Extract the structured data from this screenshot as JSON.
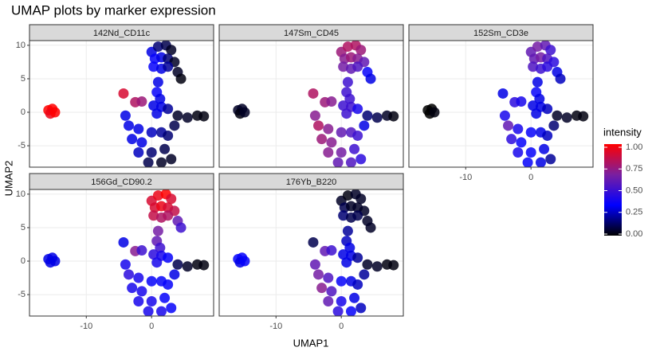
{
  "chart_data": {
    "type": "scatter",
    "title": "UMAP plots by marker expression",
    "x_label": "UMAP1",
    "y_label": "UMAP2",
    "xlim": [
      -18.7,
      9.5
    ],
    "ylim": [
      -8.2,
      10.7
    ],
    "xticks": [
      -10,
      0
    ],
    "yticks": [
      -5,
      0,
      5,
      10
    ],
    "grid": true,
    "x": [
      -15.8,
      -15.2,
      -15.5,
      -14.8,
      -4.3,
      -2.5,
      -1.5,
      0,
      1,
      2.2,
      3,
      0.5,
      1.5,
      2.5,
      3.5,
      0.3,
      1.5,
      2.5,
      4,
      4.5,
      1,
      0.8,
      1.3,
      0.3,
      1.5,
      2.5,
      0.8,
      4,
      5.5,
      7,
      8,
      3.5,
      -3.5,
      -2,
      -3,
      -1.5,
      0,
      1.5,
      2.5,
      -2,
      0,
      2,
      -0.5,
      1.5,
      3,
      -4
    ],
    "y": [
      0.3,
      0.5,
      -0.2,
      0,
      2.8,
      1.5,
      1.6,
      9,
      9.8,
      10,
      9.3,
      8,
      8.2,
      8,
      7.5,
      6.8,
      6.5,
      6.8,
      6,
      5,
      4.5,
      3,
      2,
      1,
      0.8,
      0.5,
      -0.2,
      -0.5,
      -0.8,
      -0.5,
      -0.6,
      -2,
      -2,
      -2.5,
      -4,
      -4.5,
      -3,
      -3,
      -3.5,
      -6,
      -6,
      -5.5,
      -7.5,
      -7.5,
      -7,
      -0.5
    ],
    "legend_title": "intensity",
    "colors": [
      "#000000",
      "#0000ff",
      "#7a1fa0",
      "#ff0000"
    ],
    "clim": [
      0,
      1
    ],
    "cticks": [
      {
        "value": 0,
        "label": "0.00"
      },
      {
        "value": 0.25,
        "label": "0.25"
      },
      {
        "value": 0.5,
        "label": "0.50"
      },
      {
        "value": 0.75,
        "label": "0.75"
      },
      {
        "value": 1,
        "label": "1.00"
      }
    ],
    "facets": [
      {
        "name": "142Nd_CD11c",
        "values": [
          1,
          1,
          0.95,
          1,
          0.9,
          0.8,
          0.75,
          0.3,
          0.15,
          0.1,
          0.05,
          0.35,
          0.3,
          0.15,
          0.05,
          0.35,
          0.3,
          0.2,
          0.05,
          0.02,
          0.3,
          0.35,
          0.3,
          0.3,
          0.3,
          0.2,
          0.3,
          0.05,
          0.05,
          0.02,
          0.02,
          0.1,
          0.3,
          0.3,
          0.3,
          0.3,
          0.25,
          0.2,
          0.15,
          0.25,
          0.15,
          0.1,
          0.1,
          0.05,
          0.05,
          0.3
        ]
      },
      {
        "name": "147Sm_CD45",
        "values": [
          0.05,
          0.05,
          0.02,
          0.05,
          0.8,
          0.75,
          0.7,
          0.75,
          0.8,
          0.8,
          0.75,
          0.7,
          0.75,
          0.7,
          0.6,
          0.65,
          0.6,
          0.55,
          0.35,
          0.3,
          0.5,
          0.5,
          0.5,
          0.5,
          0.5,
          0.4,
          0.5,
          0.15,
          0.1,
          0.05,
          0.02,
          0.3,
          0.8,
          0.7,
          0.75,
          0.7,
          0.6,
          0.55,
          0.5,
          0.7,
          0.65,
          0.5,
          0.6,
          0.55,
          0.45,
          0.7
        ]
      },
      {
        "name": "152Sm_CD3e",
        "values": [
          0,
          0,
          0,
          0.02,
          0.3,
          0.45,
          0.4,
          0.6,
          0.65,
          0.6,
          0.5,
          0.6,
          0.65,
          0.55,
          0.45,
          0.55,
          0.5,
          0.45,
          0.3,
          0.25,
          0.3,
          0.35,
          0.3,
          0.3,
          0.3,
          0.25,
          0.3,
          0.05,
          0.05,
          0.02,
          0.02,
          0.15,
          0.6,
          0.4,
          0.45,
          0.35,
          0.35,
          0.3,
          0.25,
          0.4,
          0.35,
          0.3,
          0.35,
          0.3,
          0.2,
          0.4
        ]
      },
      {
        "name": "156Gd_CD90.2",
        "values": [
          0.3,
          0.3,
          0.3,
          0.3,
          0.3,
          0.7,
          0.5,
          0.9,
          0.95,
          1,
          0.9,
          0.9,
          0.95,
          0.9,
          0.85,
          0.85,
          0.8,
          0.8,
          0.6,
          0.5,
          0.65,
          0.6,
          0.5,
          0.45,
          0.4,
          0.35,
          0.4,
          0.1,
          0.05,
          0.02,
          0.02,
          0.3,
          0.45,
          0.4,
          0.4,
          0.4,
          0.35,
          0.35,
          0.35,
          0.4,
          0.4,
          0.35,
          0.4,
          0.4,
          0.35,
          0.4
        ]
      },
      {
        "name": "176Yb_B220",
        "values": [
          0.35,
          0.35,
          0.3,
          0.35,
          0.1,
          0.6,
          0.5,
          0.05,
          0.02,
          0.05,
          0.05,
          0.1,
          0.05,
          0.05,
          0.05,
          0.15,
          0.1,
          0.1,
          0.05,
          0.05,
          0.2,
          0.25,
          0.3,
          0.3,
          0.3,
          0.2,
          0.3,
          0.05,
          0.05,
          0.02,
          0.02,
          0.2,
          0.65,
          0.55,
          0.7,
          0.55,
          0.35,
          0.3,
          0.25,
          0.6,
          0.4,
          0.3,
          0.45,
          0.35,
          0.25,
          0.6
        ]
      }
    ]
  }
}
